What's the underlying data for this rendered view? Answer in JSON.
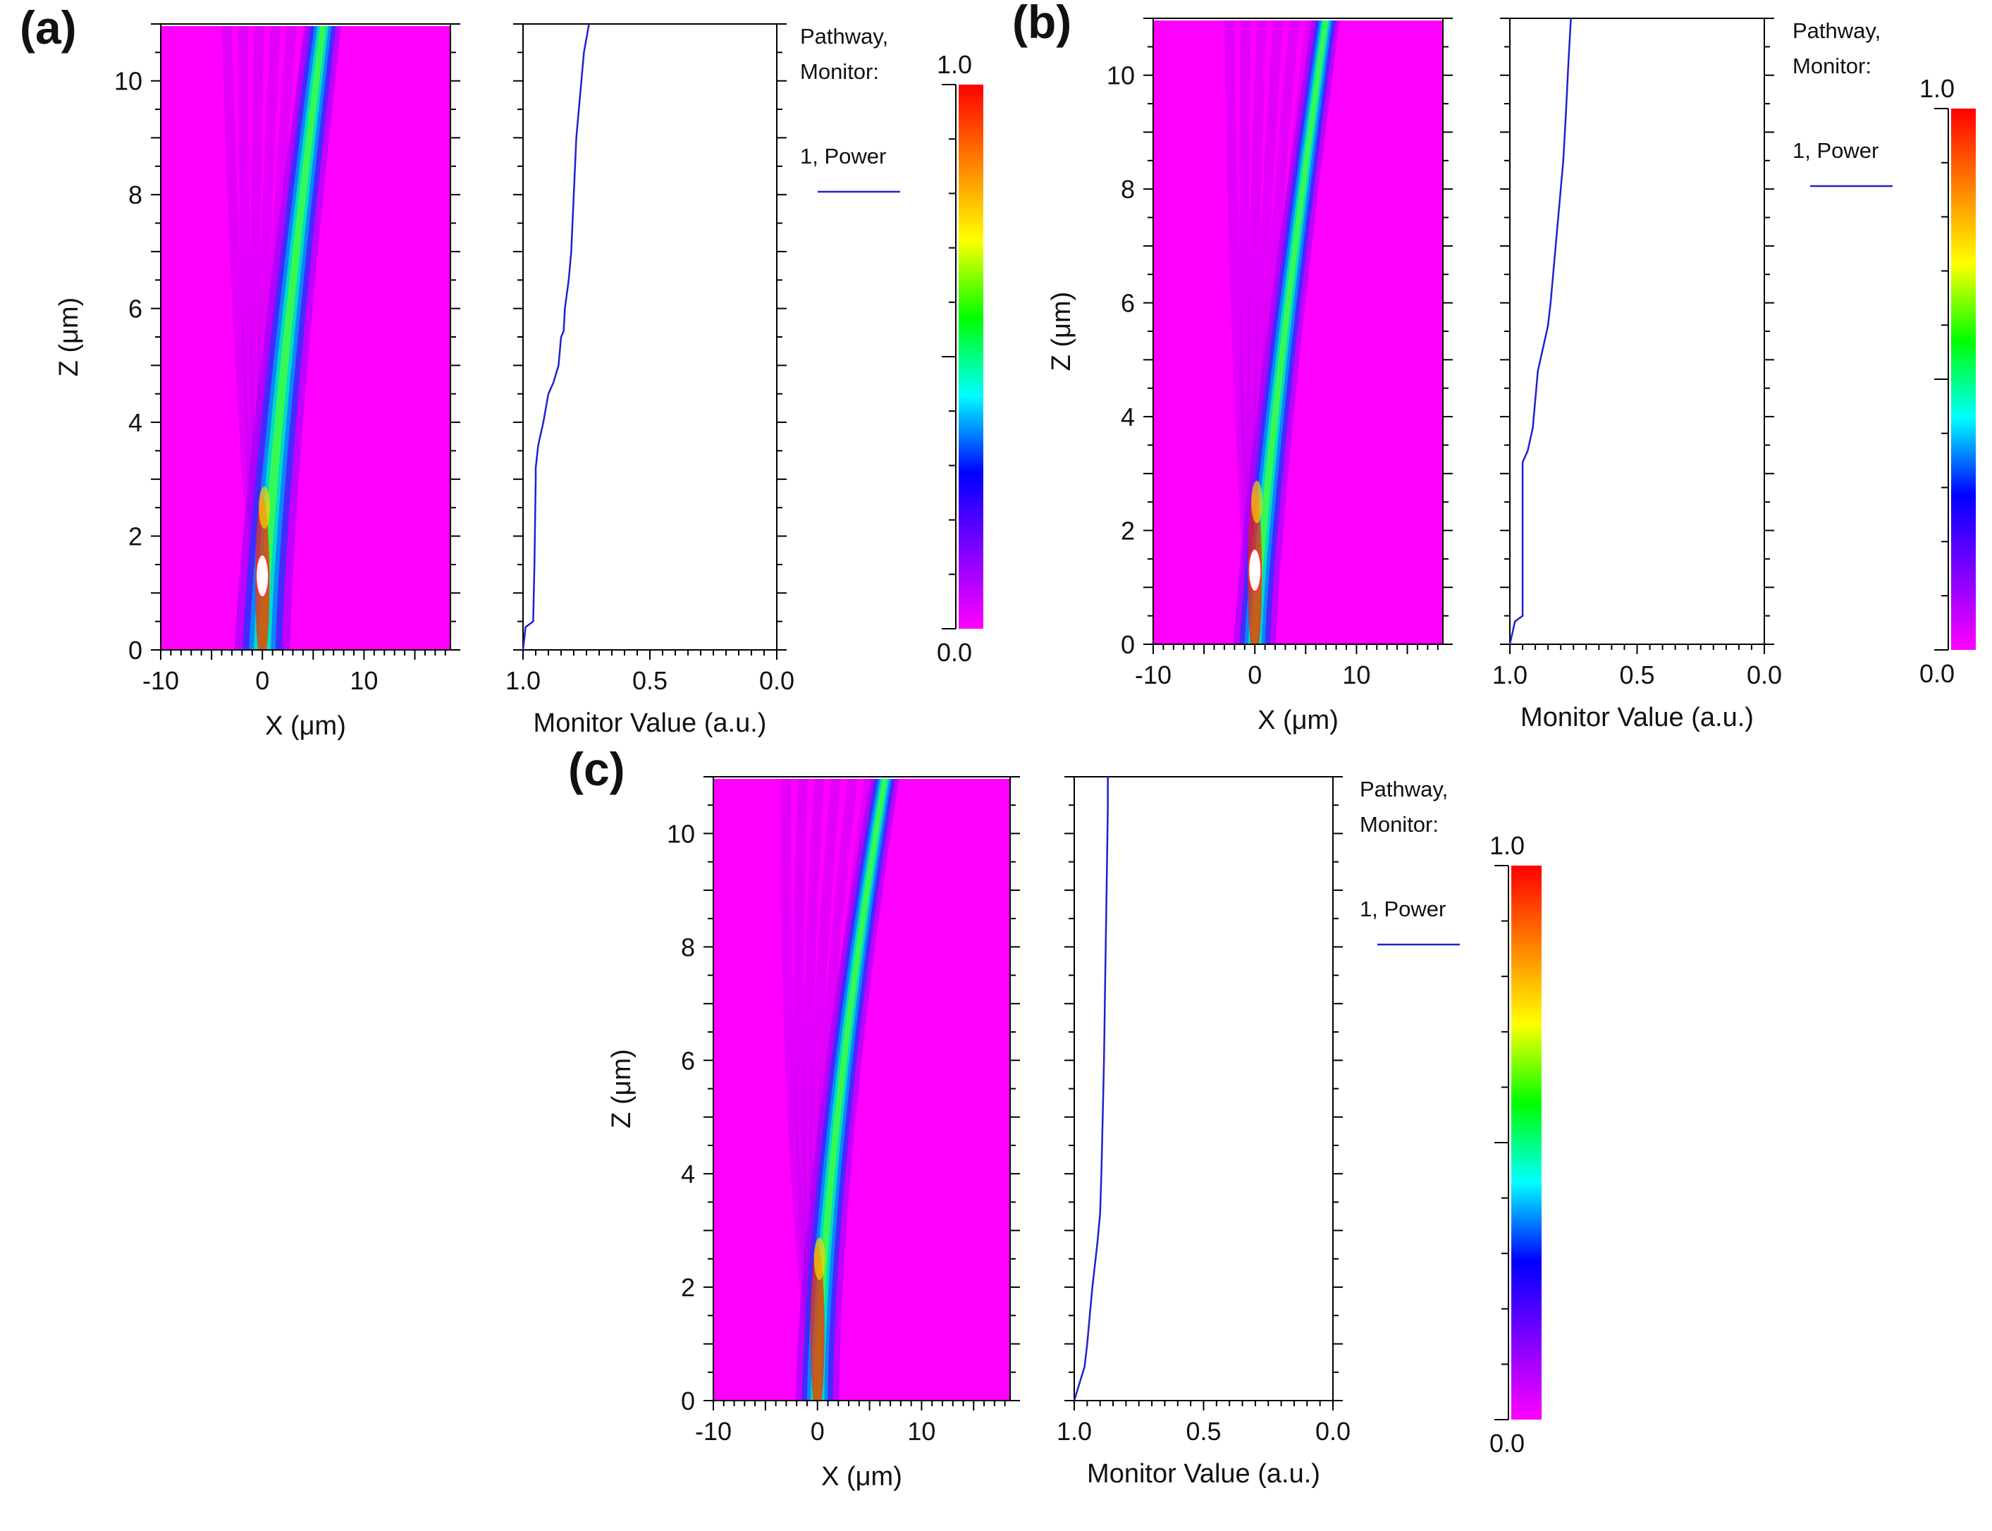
{
  "figure": {
    "panels": [
      {
        "id": "a",
        "label": "(a)",
        "curve_end_x": 6,
        "curve_sharpness": 1.3,
        "beam_width": 1.3,
        "hotspot": true
      },
      {
        "id": "b",
        "label": "(b)",
        "curve_end_x": 7,
        "curve_sharpness": 1.25,
        "beam_width": 1.0,
        "hotspot": true
      },
      {
        "id": "c",
        "label": "(c)",
        "curve_end_x": 6.5,
        "curve_sharpness": 1.55,
        "beam_width": 1.0,
        "hotspot": false
      }
    ]
  },
  "chart_data": [
    {
      "type": "heatmap",
      "panel": "a",
      "title": "",
      "xlabel": "X (μm)",
      "ylabel": "Z (μm)",
      "xlim": [
        -10,
        18.5
      ],
      "ylim": [
        0,
        11
      ],
      "xticks": [
        -10,
        0,
        10
      ],
      "yticks": [
        0,
        2,
        4,
        6,
        8,
        10
      ],
      "colorbar": {
        "min": "0.0",
        "max": "1.0",
        "colormap": "rainbow",
        "colors": [
          "#ff00ff",
          "#8000ff",
          "#0000ff",
          "#00ffff",
          "#00ff00",
          "#ffff00",
          "#ff8000",
          "#ff0000"
        ]
      },
      "background_color": "#ff00ff"
    },
    {
      "type": "line",
      "panel": "a",
      "xlabel": "Monitor Value (a.u.)",
      "xlim": [
        1.0,
        0.0
      ],
      "ylim": [
        0,
        11
      ],
      "xticks": [
        "1.0",
        "0.5",
        "0.0"
      ],
      "legend": {
        "title_line1": "Pathway,",
        "title_line2": "Monitor:",
        "entry": "1, Power",
        "color": "#2020d0"
      },
      "series": [
        {
          "name": "1, Power",
          "x": [
            1.0,
            0.99,
            0.96,
            0.955,
            0.95,
            0.95,
            0.94,
            0.92,
            0.9,
            0.88,
            0.86,
            0.85,
            0.84,
            0.835,
            0.82,
            0.81,
            0.8,
            0.79,
            0.78,
            0.76,
            0.74
          ],
          "z": [
            0.0,
            0.4,
            0.5,
            1.5,
            3.0,
            3.2,
            3.6,
            4.0,
            4.5,
            4.7,
            5.0,
            5.5,
            5.6,
            6.0,
            6.5,
            7.0,
            8.0,
            9.0,
            9.5,
            10.5,
            11.0
          ]
        }
      ]
    },
    {
      "type": "heatmap",
      "panel": "b",
      "title": "",
      "xlabel": "X (μm)",
      "ylabel": "Z (μm)",
      "xlim": [
        -10,
        18.5
      ],
      "ylim": [
        0,
        11
      ],
      "xticks": [
        -10,
        0,
        10
      ],
      "yticks": [
        0,
        2,
        4,
        6,
        8,
        10
      ],
      "colorbar": {
        "min": "0.0",
        "max": "1.0",
        "colormap": "rainbow",
        "colors": [
          "#ff00ff",
          "#8000ff",
          "#0000ff",
          "#00ffff",
          "#00ff00",
          "#ffff00",
          "#ff8000",
          "#ff0000"
        ]
      },
      "background_color": "#ff00ff"
    },
    {
      "type": "line",
      "panel": "b",
      "xlabel": "Monitor Value (a.u.)",
      "xlim": [
        1.0,
        0.0
      ],
      "ylim": [
        0,
        11
      ],
      "xticks": [
        "1.0",
        "0.5",
        "0.0"
      ],
      "legend": {
        "title_line1": "Pathway,",
        "title_line2": "Monitor:",
        "entry": "1, Power",
        "color": "#2020d0"
      },
      "series": [
        {
          "name": "1, Power",
          "x": [
            1.0,
            0.98,
            0.95,
            0.95,
            0.93,
            0.91,
            0.9,
            0.89,
            0.87,
            0.85,
            0.84,
            0.83,
            0.82,
            0.81,
            0.8,
            0.79,
            0.78,
            0.77,
            0.76
          ],
          "z": [
            0.0,
            0.4,
            0.5,
            3.2,
            3.4,
            3.8,
            4.3,
            4.8,
            5.2,
            5.6,
            6.0,
            6.5,
            7.0,
            7.5,
            8.0,
            8.5,
            9.3,
            10.2,
            11.0
          ]
        }
      ]
    },
    {
      "type": "heatmap",
      "panel": "c",
      "title": "",
      "xlabel": "X (μm)",
      "ylabel": "Z (μm)",
      "xlim": [
        -10,
        18.5
      ],
      "ylim": [
        0,
        11
      ],
      "xticks": [
        -10,
        0,
        10
      ],
      "yticks": [
        0,
        2,
        4,
        6,
        8,
        10
      ],
      "colorbar": {
        "min": "0.0",
        "max": "1.0",
        "colormap": "rainbow",
        "colors": [
          "#ff00ff",
          "#8000ff",
          "#0000ff",
          "#00ffff",
          "#00ff00",
          "#ffff00",
          "#ff8000",
          "#ff0000"
        ]
      },
      "background_color": "#ff00ff"
    },
    {
      "type": "line",
      "panel": "c",
      "xlabel": "Monitor Value (a.u.)",
      "xlim": [
        1.0,
        0.0
      ],
      "ylim": [
        0,
        11
      ],
      "xticks": [
        "1.0",
        "0.5",
        "0.0"
      ],
      "legend": {
        "title_line1": "Pathway,",
        "title_line2": "Monitor:",
        "entry": "1, Power",
        "color": "#2020d0"
      },
      "series": [
        {
          "name": "1, Power",
          "x": [
            1.0,
            0.98,
            0.96,
            0.95,
            0.94,
            0.93,
            0.92,
            0.91,
            0.9,
            0.895,
            0.89,
            0.885,
            0.88,
            0.875,
            0.87,
            0.87
          ],
          "z": [
            0.0,
            0.3,
            0.6,
            1.0,
            1.5,
            2.0,
            2.4,
            2.8,
            3.3,
            4.0,
            5.0,
            6.0,
            7.5,
            9.0,
            10.5,
            11.0
          ]
        }
      ]
    }
  ]
}
